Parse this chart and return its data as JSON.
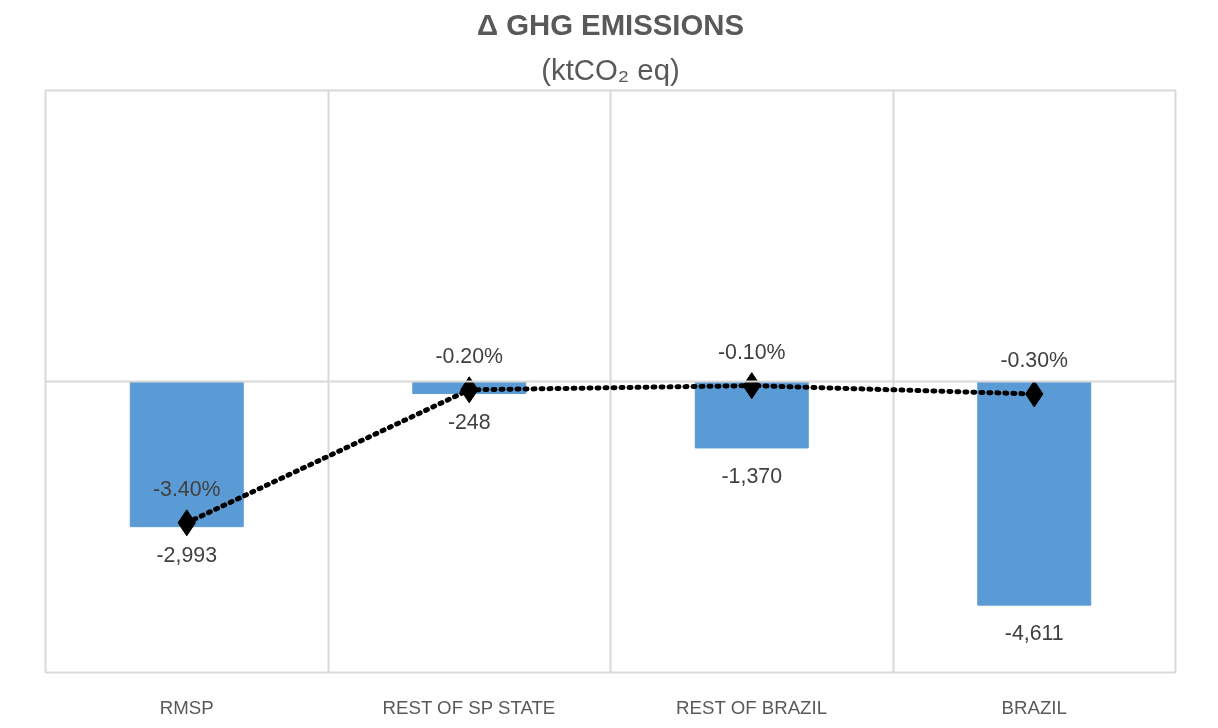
{
  "chart_data": {
    "type": "bar",
    "title": "Δ GHG EMISSIONS",
    "subtitle": "(ktCO₂ eq)",
    "categories": [
      "RMSP",
      "REST OF SP STATE",
      "REST OF BRAZIL",
      "BRAZIL"
    ],
    "series": [
      {
        "color": "#5b9bd5",
        "values": [
          -2993,
          -248,
          -1370,
          -4611
        ],
        "value_labels": [
          "-2,993",
          "-248",
          "-1,370",
          "-4,611"
        ]
      },
      {
        "type": "line",
        "axis": "y2",
        "color": "#000000",
        "marker": "diamond",
        "line_style": "dotted",
        "values": [
          -3.4,
          -0.2,
          -0.1,
          -0.3
        ],
        "value_labels": [
          "-3.40%",
          "-0.20%",
          "-0.10%",
          "-0.30%"
        ]
      }
    ],
    "ylim": [
      -6000,
      6000
    ],
    "y2lim": [
      -7,
      7
    ],
    "grid": "x",
    "tick_labels": "x"
  }
}
